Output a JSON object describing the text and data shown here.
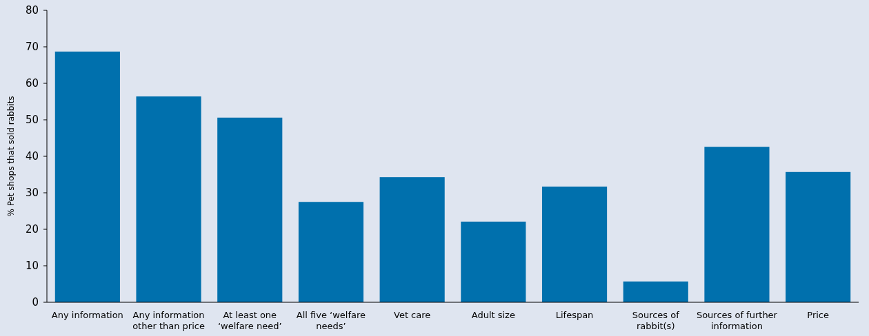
{
  "chart_data": {
    "type": "bar",
    "ylabel": "% Pet shops that sold rabbits",
    "categories": [
      "Any information",
      "Any information other than price",
      "At least one ‘welfare need’",
      "All five ‘welfare needs’",
      "Vet care",
      "Adult size",
      "Lifespan",
      "Sources of rabbit(s)",
      "Sources of further information",
      "Price"
    ],
    "values": [
      68.7,
      56.4,
      50.6,
      27.5,
      34.3,
      22.1,
      31.7,
      5.7,
      42.6,
      35.7
    ],
    "color": "#0070ad",
    "ylim": [
      0,
      80
    ],
    "yticks": [
      0,
      10,
      20,
      30,
      40,
      50,
      60,
      70,
      80
    ],
    "grid": false
  }
}
